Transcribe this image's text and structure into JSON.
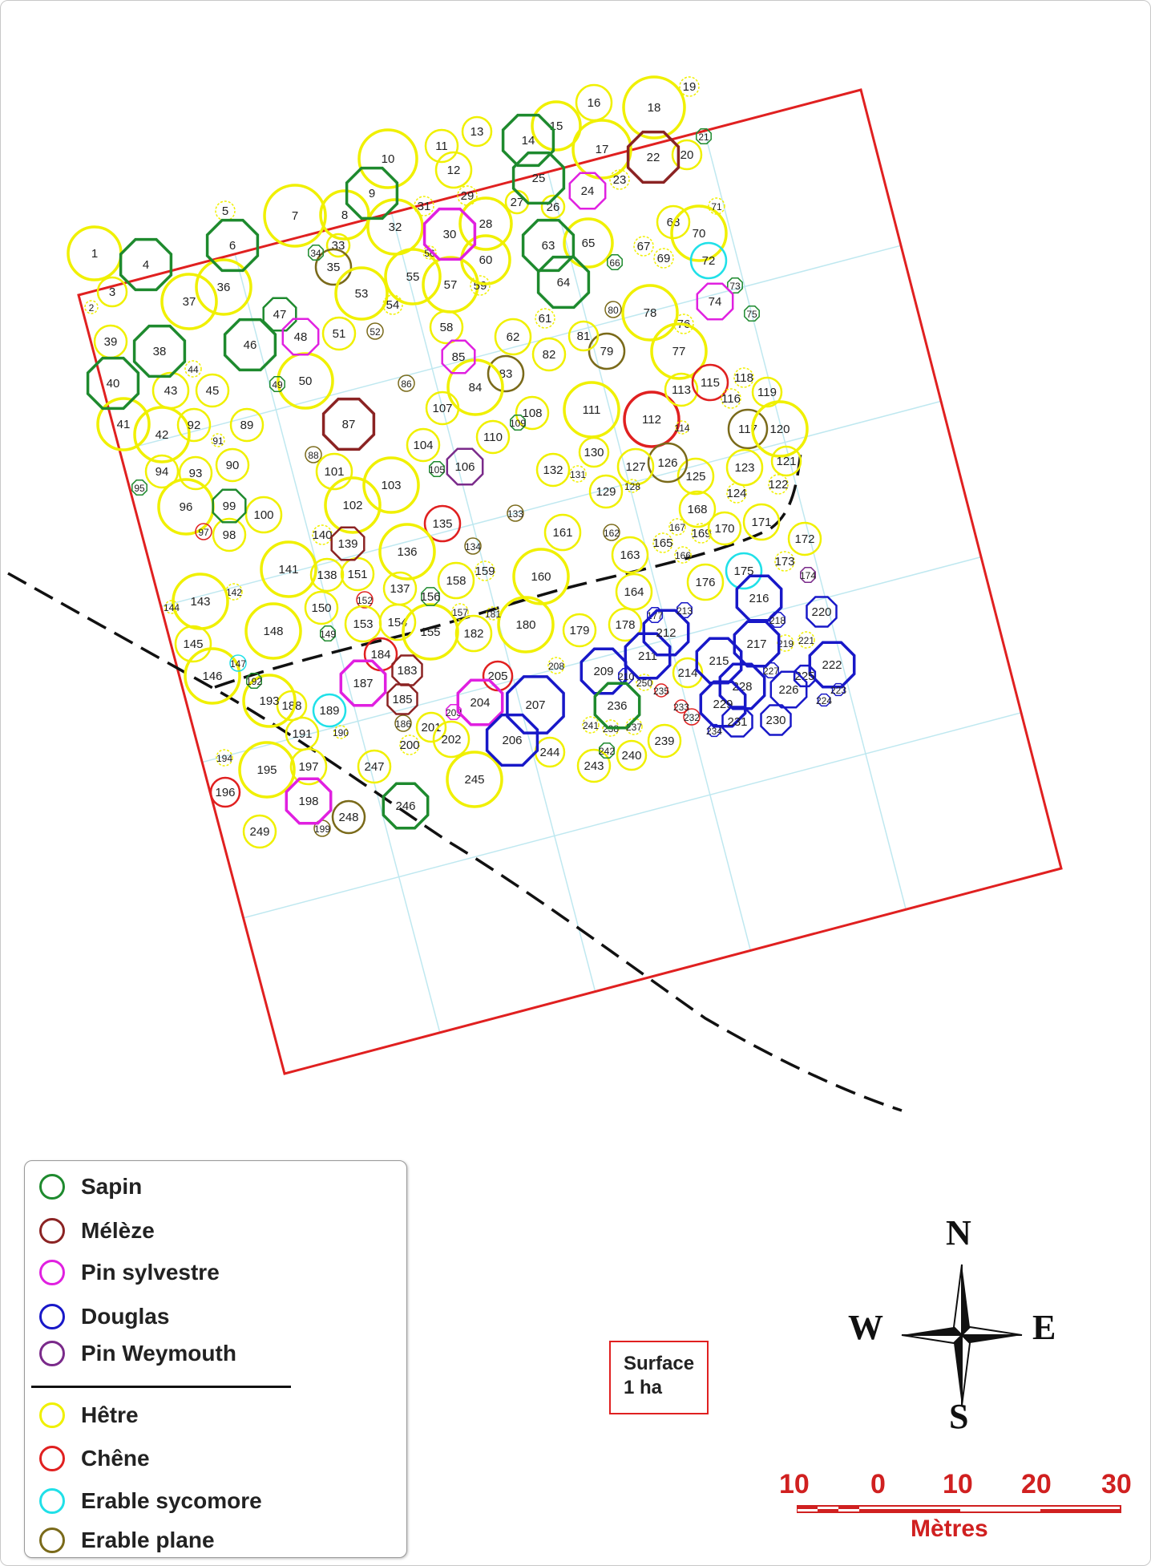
{
  "colors": {
    "Sapin": "#1e8a2e",
    "Meleze": "#8b2323",
    "Pin sylvestre": "#e020e0",
    "Douglas": "#1818c8",
    "Pin Weymouth": "#7a2a8a",
    "Hetre": "#f0f000",
    "Chene": "#e02020",
    "Erable sycomore": "#20e0e8",
    "Erable plane": "#7a6a1a"
  },
  "legend": {
    "items": [
      {
        "label": "Sapin",
        "color": "#1e8a2e"
      },
      {
        "label": "Mélèze",
        "color": "#8b2323"
      },
      {
        "label": "Pin sylvestre",
        "color": "#e020e0"
      },
      {
        "label": "Douglas",
        "color": "#1818c8"
      },
      {
        "label": "Pin Weymouth",
        "color": "#7a2a8a"
      },
      {
        "label": "Hêtre",
        "color": "#f0f000"
      },
      {
        "label": "Chêne",
        "color": "#e02020"
      },
      {
        "label": "Erable sycomore",
        "color": "#20e0e8"
      },
      {
        "label": "Erable plane",
        "color": "#7a6a1a"
      }
    ]
  },
  "surface": {
    "line1": "Surface",
    "line2": "1 ha"
  },
  "compass": {
    "n": "N",
    "s": "S",
    "e": "E",
    "w": "W"
  },
  "scale": {
    "ticks": [
      "10",
      "0",
      "10",
      "20",
      "30"
    ],
    "unit": "Mètres"
  },
  "trees": [
    {
      "id": "1",
      "sp": "H"
    },
    {
      "id": "2",
      "sp": "H"
    },
    {
      "id": "3",
      "sp": "H"
    },
    {
      "id": "4",
      "sp": "S"
    },
    {
      "id": "5",
      "sp": "H"
    },
    {
      "id": "6",
      "sp": "S"
    },
    {
      "id": "7",
      "sp": "H"
    },
    {
      "id": "8",
      "sp": "H"
    },
    {
      "id": "9",
      "sp": "S"
    },
    {
      "id": "10",
      "sp": "H"
    },
    {
      "id": "11",
      "sp": "H"
    },
    {
      "id": "12",
      "sp": "H"
    },
    {
      "id": "13",
      "sp": "H"
    },
    {
      "id": "14",
      "sp": "S"
    },
    {
      "id": "15",
      "sp": "H"
    },
    {
      "id": "16",
      "sp": "H"
    },
    {
      "id": "17",
      "sp": "H"
    },
    {
      "id": "18",
      "sp": "H"
    },
    {
      "id": "19",
      "sp": "H"
    },
    {
      "id": "20",
      "sp": "H"
    },
    {
      "id": "21",
      "sp": "S"
    },
    {
      "id": "22",
      "sp": "M"
    },
    {
      "id": "23",
      "sp": "H"
    },
    {
      "id": "24",
      "sp": "P"
    },
    {
      "id": "25",
      "sp": "S"
    },
    {
      "id": "26",
      "sp": "H"
    },
    {
      "id": "27",
      "sp": "H"
    },
    {
      "id": "28",
      "sp": "H"
    },
    {
      "id": "29",
      "sp": "H"
    },
    {
      "id": "30",
      "sp": "P"
    },
    {
      "id": "31",
      "sp": "H"
    },
    {
      "id": "32",
      "sp": "H"
    },
    {
      "id": "33",
      "sp": "H"
    },
    {
      "id": "34",
      "sp": "S"
    },
    {
      "id": "35",
      "sp": "EP"
    },
    {
      "id": "36",
      "sp": "H"
    },
    {
      "id": "37",
      "sp": "H"
    },
    {
      "id": "38",
      "sp": "S"
    },
    {
      "id": "39",
      "sp": "H"
    },
    {
      "id": "40",
      "sp": "S"
    },
    {
      "id": "41",
      "sp": "H"
    },
    {
      "id": "42",
      "sp": "H"
    },
    {
      "id": "43",
      "sp": "H"
    },
    {
      "id": "44",
      "sp": "H"
    },
    {
      "id": "45",
      "sp": "H"
    },
    {
      "id": "46",
      "sp": "S"
    },
    {
      "id": "47",
      "sp": "S"
    },
    {
      "id": "48",
      "sp": "P"
    },
    {
      "id": "49",
      "sp": "S"
    },
    {
      "id": "50",
      "sp": "H"
    },
    {
      "id": "51",
      "sp": "H"
    },
    {
      "id": "52",
      "sp": "EP"
    },
    {
      "id": "53",
      "sp": "H"
    },
    {
      "id": "54",
      "sp": "H"
    },
    {
      "id": "55",
      "sp": "H"
    },
    {
      "id": "56",
      "sp": "H"
    },
    {
      "id": "57",
      "sp": "H"
    },
    {
      "id": "58",
      "sp": "H"
    },
    {
      "id": "59",
      "sp": "H"
    },
    {
      "id": "60",
      "sp": "H"
    },
    {
      "id": "61",
      "sp": "H"
    },
    {
      "id": "62",
      "sp": "H"
    },
    {
      "id": "63",
      "sp": "S"
    },
    {
      "id": "64",
      "sp": "S"
    },
    {
      "id": "65",
      "sp": "H"
    },
    {
      "id": "66",
      "sp": "S"
    },
    {
      "id": "67",
      "sp": "H"
    },
    {
      "id": "68",
      "sp": "H"
    },
    {
      "id": "69",
      "sp": "H"
    },
    {
      "id": "70",
      "sp": "H"
    },
    {
      "id": "71",
      "sp": "H"
    },
    {
      "id": "72",
      "sp": "ES"
    },
    {
      "id": "73",
      "sp": "S"
    },
    {
      "id": "74",
      "sp": "P"
    },
    {
      "id": "75",
      "sp": "S"
    },
    {
      "id": "76",
      "sp": "H"
    },
    {
      "id": "77",
      "sp": "H"
    },
    {
      "id": "78",
      "sp": "H"
    },
    {
      "id": "79",
      "sp": "EP"
    },
    {
      "id": "80",
      "sp": "EP"
    },
    {
      "id": "81",
      "sp": "H"
    },
    {
      "id": "82",
      "sp": "H"
    },
    {
      "id": "83",
      "sp": "EP"
    },
    {
      "id": "84",
      "sp": "H"
    },
    {
      "id": "85",
      "sp": "P"
    },
    {
      "id": "86",
      "sp": "EP"
    },
    {
      "id": "87",
      "sp": "M"
    },
    {
      "id": "88",
      "sp": "EP"
    },
    {
      "id": "89",
      "sp": "H"
    },
    {
      "id": "90",
      "sp": "H"
    },
    {
      "id": "91",
      "sp": "H"
    },
    {
      "id": "92",
      "sp": "H"
    },
    {
      "id": "93",
      "sp": "H"
    },
    {
      "id": "94",
      "sp": "H"
    },
    {
      "id": "95",
      "sp": "S"
    },
    {
      "id": "96",
      "sp": "H"
    },
    {
      "id": "97",
      "sp": "C"
    },
    {
      "id": "98",
      "sp": "H"
    },
    {
      "id": "99",
      "sp": "S"
    },
    {
      "id": "100",
      "sp": "H"
    },
    {
      "id": "101",
      "sp": "H"
    },
    {
      "id": "102",
      "sp": "H"
    },
    {
      "id": "103",
      "sp": "H"
    },
    {
      "id": "104",
      "sp": "H"
    },
    {
      "id": "105",
      "sp": "S"
    },
    {
      "id": "106",
      "sp": "W"
    },
    {
      "id": "107",
      "sp": "H"
    },
    {
      "id": "108",
      "sp": "H"
    },
    {
      "id": "109",
      "sp": "S"
    },
    {
      "id": "110",
      "sp": "H"
    },
    {
      "id": "111",
      "sp": "H"
    },
    {
      "id": "112",
      "sp": "C"
    },
    {
      "id": "113",
      "sp": "H"
    },
    {
      "id": "114",
      "sp": "H"
    },
    {
      "id": "115",
      "sp": "C"
    },
    {
      "id": "116",
      "sp": "H"
    },
    {
      "id": "117",
      "sp": "EP"
    },
    {
      "id": "118",
      "sp": "H"
    },
    {
      "id": "119",
      "sp": "H"
    },
    {
      "id": "120",
      "sp": "H"
    },
    {
      "id": "121",
      "sp": "H"
    },
    {
      "id": "122",
      "sp": "H"
    },
    {
      "id": "123",
      "sp": "H"
    },
    {
      "id": "124",
      "sp": "H"
    },
    {
      "id": "125",
      "sp": "H"
    },
    {
      "id": "126",
      "sp": "EP"
    },
    {
      "id": "127",
      "sp": "H"
    },
    {
      "id": "128",
      "sp": "H"
    },
    {
      "id": "129",
      "sp": "H"
    },
    {
      "id": "130",
      "sp": "H"
    },
    {
      "id": "131",
      "sp": "H"
    },
    {
      "id": "132",
      "sp": "H"
    },
    {
      "id": "133",
      "sp": "EP"
    },
    {
      "id": "134",
      "sp": "EP"
    },
    {
      "id": "135",
      "sp": "C"
    },
    {
      "id": "136",
      "sp": "H"
    },
    {
      "id": "137",
      "sp": "H"
    },
    {
      "id": "138",
      "sp": "H"
    },
    {
      "id": "139",
      "sp": "M"
    },
    {
      "id": "140",
      "sp": "H"
    },
    {
      "id": "141",
      "sp": "H"
    },
    {
      "id": "142",
      "sp": "H"
    },
    {
      "id": "143",
      "sp": "H"
    },
    {
      "id": "144",
      "sp": "H"
    },
    {
      "id": "145",
      "sp": "H"
    },
    {
      "id": "146",
      "sp": "H"
    },
    {
      "id": "147",
      "sp": "ES"
    },
    {
      "id": "148",
      "sp": "H"
    },
    {
      "id": "149",
      "sp": "S"
    },
    {
      "id": "150",
      "sp": "H"
    },
    {
      "id": "151",
      "sp": "H"
    },
    {
      "id": "152",
      "sp": "C"
    },
    {
      "id": "153",
      "sp": "H"
    },
    {
      "id": "154",
      "sp": "H"
    },
    {
      "id": "155",
      "sp": "H"
    },
    {
      "id": "156",
      "sp": "S"
    },
    {
      "id": "157",
      "sp": "H"
    },
    {
      "id": "158",
      "sp": "H"
    },
    {
      "id": "159",
      "sp": "H"
    },
    {
      "id": "160",
      "sp": "H"
    },
    {
      "id": "161",
      "sp": "H"
    },
    {
      "id": "162",
      "sp": "EP"
    },
    {
      "id": "163",
      "sp": "H"
    },
    {
      "id": "164",
      "sp": "H"
    },
    {
      "id": "165",
      "sp": "H"
    },
    {
      "id": "166",
      "sp": "H"
    },
    {
      "id": "167",
      "sp": "H"
    },
    {
      "id": "168",
      "sp": "H"
    },
    {
      "id": "169",
      "sp": "H"
    },
    {
      "id": "170",
      "sp": "H"
    },
    {
      "id": "171",
      "sp": "H"
    },
    {
      "id": "172",
      "sp": "H"
    },
    {
      "id": "173",
      "sp": "H"
    },
    {
      "id": "174",
      "sp": "W"
    },
    {
      "id": "175",
      "sp": "ES"
    },
    {
      "id": "176",
      "sp": "H"
    },
    {
      "id": "177",
      "sp": "D"
    },
    {
      "id": "178",
      "sp": "H"
    },
    {
      "id": "179",
      "sp": "H"
    },
    {
      "id": "180",
      "sp": "H"
    },
    {
      "id": "181",
      "sp": "H"
    },
    {
      "id": "182",
      "sp": "H"
    },
    {
      "id": "183",
      "sp": "M"
    },
    {
      "id": "184",
      "sp": "C"
    },
    {
      "id": "185",
      "sp": "M"
    },
    {
      "id": "186",
      "sp": "EP"
    },
    {
      "id": "187",
      "sp": "P"
    },
    {
      "id": "188",
      "sp": "H"
    },
    {
      "id": "189",
      "sp": "ES"
    },
    {
      "id": "190",
      "sp": "H"
    },
    {
      "id": "191",
      "sp": "H"
    },
    {
      "id": "192",
      "sp": "S"
    },
    {
      "id": "193",
      "sp": "H"
    },
    {
      "id": "194",
      "sp": "H"
    },
    {
      "id": "195",
      "sp": "H"
    },
    {
      "id": "196",
      "sp": "C"
    },
    {
      "id": "197",
      "sp": "H"
    },
    {
      "id": "198",
      "sp": "P"
    },
    {
      "id": "199",
      "sp": "EP"
    },
    {
      "id": "200",
      "sp": "H"
    },
    {
      "id": "201",
      "sp": "H"
    },
    {
      "id": "202",
      "sp": "H"
    },
    {
      "id": "203",
      "sp": "P"
    },
    {
      "id": "204",
      "sp": "P"
    },
    {
      "id": "205",
      "sp": "C"
    },
    {
      "id": "206",
      "sp": "D"
    },
    {
      "id": "207",
      "sp": "D"
    },
    {
      "id": "208",
      "sp": "H"
    },
    {
      "id": "209",
      "sp": "D"
    },
    {
      "id": "210",
      "sp": "D"
    },
    {
      "id": "211",
      "sp": "D"
    },
    {
      "id": "212",
      "sp": "D"
    },
    {
      "id": "213",
      "sp": "D"
    },
    {
      "id": "214",
      "sp": "H"
    },
    {
      "id": "215",
      "sp": "D"
    },
    {
      "id": "216",
      "sp": "D"
    },
    {
      "id": "217",
      "sp": "D"
    },
    {
      "id": "218",
      "sp": "D"
    },
    {
      "id": "219",
      "sp": "H"
    },
    {
      "id": "220",
      "sp": "D"
    },
    {
      "id": "221",
      "sp": "H"
    },
    {
      "id": "222",
      "sp": "D"
    },
    {
      "id": "223",
      "sp": "D"
    },
    {
      "id": "224",
      "sp": "D"
    },
    {
      "id": "225",
      "sp": "D"
    },
    {
      "id": "226",
      "sp": "D"
    },
    {
      "id": "227",
      "sp": "D"
    },
    {
      "id": "228",
      "sp": "D"
    },
    {
      "id": "229",
      "sp": "D"
    },
    {
      "id": "230",
      "sp": "D"
    },
    {
      "id": "231",
      "sp": "D"
    },
    {
      "id": "232",
      "sp": "C"
    },
    {
      "id": "233",
      "sp": "C"
    },
    {
      "id": "234",
      "sp": "D"
    },
    {
      "id": "235",
      "sp": "C"
    },
    {
      "id": "236",
      "sp": "S"
    },
    {
      "id": "237",
      "sp": "H"
    },
    {
      "id": "238",
      "sp": "H"
    },
    {
      "id": "239",
      "sp": "H"
    },
    {
      "id": "240",
      "sp": "H"
    },
    {
      "id": "241",
      "sp": "H"
    },
    {
      "id": "242",
      "sp": "S"
    },
    {
      "id": "243",
      "sp": "H"
    },
    {
      "id": "244",
      "sp": "H"
    },
    {
      "id": "245",
      "sp": "H"
    },
    {
      "id": "246",
      "sp": "S"
    },
    {
      "id": "247",
      "sp": "H"
    },
    {
      "id": "248",
      "sp": "EP"
    },
    {
      "id": "249",
      "sp": "H"
    },
    {
      "id": "250",
      "sp": "H"
    }
  ]
}
